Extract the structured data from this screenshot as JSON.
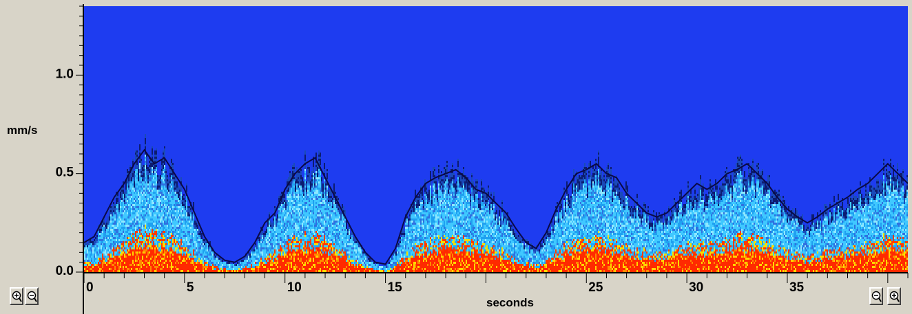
{
  "chart_data": {
    "type": "heatmap",
    "title": "",
    "xlabel": "seconds",
    "ylabel": "mm/s",
    "xlim": [
      0,
      41
    ],
    "ylim": [
      0,
      1.35
    ],
    "x_ticks": [
      {
        "value": 0,
        "label": "0"
      },
      {
        "value": 5,
        "label": "5"
      },
      {
        "value": 10,
        "label": "10"
      },
      {
        "value": 15,
        "label": "15"
      },
      {
        "value": 20,
        "label": ""
      },
      {
        "value": 25,
        "label": "25"
      },
      {
        "value": 30,
        "label": "30"
      },
      {
        "value": 35,
        "label": "35"
      },
      {
        "value": 40,
        "label": ""
      }
    ],
    "y_ticks": [
      {
        "value": 0.0,
        "label": "0.0"
      },
      {
        "value": 0.5,
        "label": "0.5"
      },
      {
        "value": 1.0,
        "label": "1.0"
      }
    ],
    "background_color": "#1e3cf0",
    "envelope_color": "#0a0a46",
    "envelope": {
      "x": [
        0,
        0.5,
        1,
        1.5,
        2,
        2.5,
        3,
        3.5,
        4,
        4.5,
        5,
        5.5,
        6,
        6.5,
        7,
        7.5,
        8,
        8.5,
        9,
        9.5,
        10,
        10.5,
        11,
        11.5,
        12,
        12.5,
        13,
        13.5,
        14,
        14.5,
        15,
        15.5,
        16,
        16.5,
        17,
        17.5,
        18,
        18.5,
        19,
        19.5,
        20,
        20.5,
        21,
        21.5,
        22,
        22.5,
        23,
        23.5,
        24,
        24.5,
        25,
        25.5,
        26,
        26.5,
        27,
        27.5,
        28,
        28.5,
        29,
        29.5,
        30,
        30.5,
        31,
        31.5,
        32,
        32.5,
        33,
        33.5,
        34,
        34.5,
        35,
        35.5,
        36,
        36.5,
        37,
        37.5,
        38,
        38.5,
        39,
        39.5,
        40,
        40.5,
        41
      ],
      "y": [
        0.15,
        0.18,
        0.28,
        0.38,
        0.45,
        0.55,
        0.62,
        0.55,
        0.58,
        0.5,
        0.42,
        0.3,
        0.18,
        0.1,
        0.06,
        0.05,
        0.08,
        0.15,
        0.25,
        0.3,
        0.42,
        0.5,
        0.55,
        0.58,
        0.48,
        0.38,
        0.28,
        0.18,
        0.1,
        0.05,
        0.04,
        0.12,
        0.28,
        0.38,
        0.45,
        0.48,
        0.5,
        0.52,
        0.48,
        0.42,
        0.4,
        0.35,
        0.3,
        0.22,
        0.15,
        0.12,
        0.2,
        0.32,
        0.42,
        0.5,
        0.52,
        0.55,
        0.5,
        0.48,
        0.4,
        0.35,
        0.3,
        0.28,
        0.3,
        0.35,
        0.4,
        0.45,
        0.42,
        0.45,
        0.5,
        0.52,
        0.55,
        0.5,
        0.45,
        0.38,
        0.32,
        0.28,
        0.25,
        0.28,
        0.32,
        0.35,
        0.38,
        0.42,
        0.45,
        0.5,
        0.55,
        0.5,
        0.45
      ]
    }
  },
  "controls": {
    "zoom_in_icon": "zoom-in-icon",
    "zoom_out_icon": "zoom-out-icon"
  }
}
